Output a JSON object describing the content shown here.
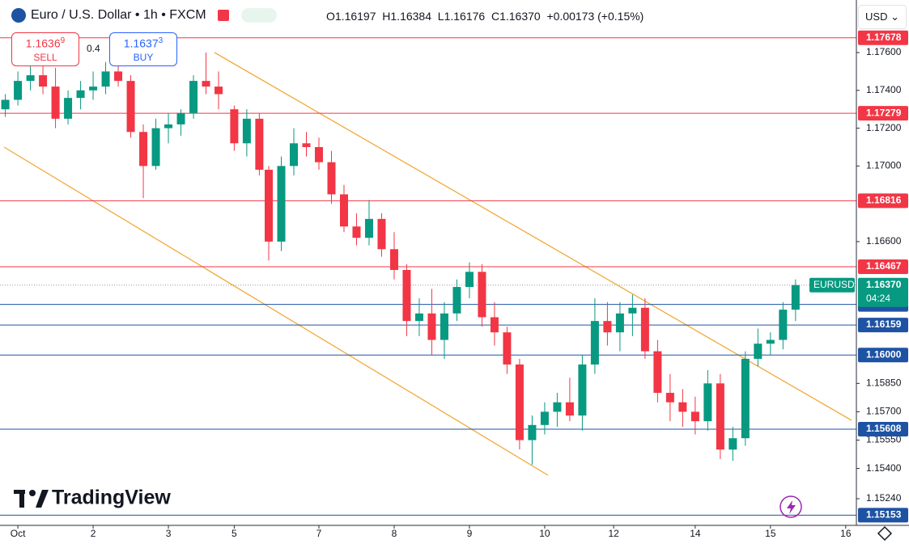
{
  "chart_data": {
    "type": "candlestick",
    "title": "Euro / U.S. Dollar • 1h • FXCM",
    "ohlc_legend": [
      "O1.16197",
      "H1.16384",
      "L1.16176",
      "C1.16370",
      "+0.00173 (+0.15%)"
    ],
    "sell": {
      "price": "1.1636",
      "pip": "9",
      "label": "SELL"
    },
    "buy": {
      "price": "1.1637",
      "pip": "3",
      "label": "BUY"
    },
    "spread": "0.4",
    "currency": "USD",
    "brand": "TradingView",
    "up_color": "#089981",
    "down_color": "#f23645",
    "xlim": [
      -5.7,
      267.4
    ],
    "ylim": [
      1.15099,
      1.17878
    ],
    "xticks": [
      {
        "value": 0,
        "label": "Oct"
      },
      {
        "value": 24,
        "label": "2"
      },
      {
        "value": 48,
        "label": "3"
      },
      {
        "value": 69,
        "label": "5"
      },
      {
        "value": 96,
        "label": "7"
      },
      {
        "value": 120,
        "label": "8"
      },
      {
        "value": 144,
        "label": "9"
      },
      {
        "value": 168,
        "label": "10"
      },
      {
        "value": 190,
        "label": "12"
      },
      {
        "value": 216,
        "label": "14"
      },
      {
        "value": 240,
        "label": "15"
      },
      {
        "value": 264,
        "label": "16"
      }
    ],
    "yticks": [
      {
        "value": 1.176,
        "label": "1.17600"
      },
      {
        "value": 1.174,
        "label": "1.17400"
      },
      {
        "value": 1.172,
        "label": "1.17200"
      },
      {
        "value": 1.17,
        "label": "1.17000"
      },
      {
        "value": 1.166,
        "label": "1.16600"
      },
      {
        "value": 1.1585,
        "label": "1.15850"
      },
      {
        "value": 1.157,
        "label": "1.15700"
      },
      {
        "value": 1.1555,
        "label": "1.15550"
      },
      {
        "value": 1.154,
        "label": "1.15400"
      },
      {
        "value": 1.1524,
        "label": "1.15240"
      }
    ],
    "levels": [
      {
        "value": 1.17678,
        "color": "#f23645"
      },
      {
        "value": 1.17279,
        "color": "#f23645"
      },
      {
        "value": 1.16816,
        "color": "#f23645"
      },
      {
        "value": 1.16467,
        "color": "#f23645"
      },
      {
        "value": 1.16268,
        "color": "#1e53a3"
      },
      {
        "value": 1.16159,
        "color": "#1e53a3"
      },
      {
        "value": 1.16,
        "label": "1.16000",
        "color": "#1e53a3"
      },
      {
        "value": 1.15608,
        "color": "#1e53a3"
      },
      {
        "value": 1.15153,
        "color": "#1e53a3"
      }
    ],
    "last": {
      "symbol": "EURUSD",
      "value": 1.1637,
      "label": "1.16370",
      "countdown": "04:24",
      "color": "#089981"
    },
    "x": [
      -4,
      0,
      4,
      8,
      12,
      16,
      20,
      24,
      28,
      32,
      36,
      40,
      44,
      48,
      52,
      56,
      60,
      64,
      69,
      73,
      77,
      80,
      84,
      88,
      92,
      96,
      100,
      104,
      108,
      112,
      116,
      120,
      124,
      128,
      132,
      136,
      140,
      144,
      148,
      152,
      156,
      160,
      164,
      168,
      172,
      176,
      180,
      184,
      188,
      192,
      196,
      200,
      204,
      208,
      212,
      216,
      220,
      224,
      228,
      232,
      236,
      240,
      244,
      248
    ],
    "open": [
      1.173,
      1.1735,
      1.1745,
      1.1748,
      1.1742,
      1.1725,
      1.1736,
      1.174,
      1.1742,
      1.175,
      1.1745,
      1.1718,
      1.17,
      1.172,
      1.1722,
      1.1728,
      1.1745,
      1.1742,
      1.173,
      1.1712,
      1.1725,
      1.1698,
      1.166,
      1.17,
      1.1712,
      1.171,
      1.1702,
      1.1685,
      1.1668,
      1.1662,
      1.1672,
      1.1656,
      1.1645,
      1.1618,
      1.1622,
      1.1608,
      1.1622,
      1.1636,
      1.1644,
      1.162,
      1.1612,
      1.1595,
      1.1555,
      1.1563,
      1.157,
      1.1575,
      1.1568,
      1.1595,
      1.1618,
      1.1612,
      1.1622,
      1.1625,
      1.1602,
      1.158,
      1.1575,
      1.157,
      1.1565,
      1.1585,
      1.155,
      1.1556,
      1.1598,
      1.1606,
      1.1608,
      1.1624
    ],
    "high": [
      1.1738,
      1.175,
      1.1765,
      1.1755,
      1.1752,
      1.174,
      1.1745,
      1.175,
      1.1755,
      1.1762,
      1.1748,
      1.1722,
      1.1725,
      1.1728,
      1.173,
      1.1748,
      1.176,
      1.175,
      1.1732,
      1.173,
      1.1728,
      1.17,
      1.1705,
      1.172,
      1.1718,
      1.1715,
      1.1708,
      1.169,
      1.1675,
      1.1682,
      1.1675,
      1.1665,
      1.1648,
      1.163,
      1.1635,
      1.1628,
      1.164,
      1.1649,
      1.1648,
      1.1628,
      1.1615,
      1.1598,
      1.1568,
      1.1575,
      1.158,
      1.1588,
      1.16,
      1.163,
      1.1628,
      1.1628,
      1.1632,
      1.163,
      1.1608,
      1.159,
      1.1582,
      1.1578,
      1.1592,
      1.159,
      1.1562,
      1.1602,
      1.1614,
      1.1612,
      1.1628,
      1.164
    ],
    "low": [
      1.1726,
      1.1732,
      1.174,
      1.1738,
      1.172,
      1.1722,
      1.173,
      1.1735,
      1.1738,
      1.1742,
      1.1715,
      1.1683,
      1.1698,
      1.1712,
      1.1716,
      1.1725,
      1.1738,
      1.173,
      1.1708,
      1.1705,
      1.1695,
      1.165,
      1.1655,
      1.1695,
      1.1705,
      1.1698,
      1.168,
      1.1665,
      1.1658,
      1.1658,
      1.1652,
      1.164,
      1.161,
      1.161,
      1.16,
      1.1598,
      1.1618,
      1.163,
      1.1615,
      1.1605,
      1.159,
      1.155,
      1.1542,
      1.1558,
      1.1562,
      1.1565,
      1.156,
      1.159,
      1.1605,
      1.1602,
      1.161,
      1.1598,
      1.1575,
      1.1565,
      1.1562,
      1.1558,
      1.156,
      1.1545,
      1.1544,
      1.1552,
      1.1594,
      1.16,
      1.1603,
      1.1618
    ],
    "close": [
      1.1735,
      1.1745,
      1.1748,
      1.1742,
      1.1725,
      1.1736,
      1.174,
      1.1742,
      1.175,
      1.1745,
      1.1718,
      1.17,
      1.172,
      1.1722,
      1.1728,
      1.1745,
      1.1742,
      1.1738,
      1.1712,
      1.1725,
      1.1698,
      1.166,
      1.17,
      1.1712,
      1.171,
      1.1702,
      1.1685,
      1.1668,
      1.1662,
      1.1672,
      1.1656,
      1.1645,
      1.1618,
      1.1622,
      1.1608,
      1.1622,
      1.1636,
      1.1644,
      1.162,
      1.1612,
      1.1595,
      1.1555,
      1.1563,
      1.157,
      1.1575,
      1.1568,
      1.1595,
      1.1618,
      1.1612,
      1.1622,
      1.1625,
      1.1602,
      1.158,
      1.1575,
      1.157,
      1.1565,
      1.1585,
      1.155,
      1.1556,
      1.1598,
      1.1606,
      1.1608,
      1.1624,
      1.1637
    ]
  }
}
